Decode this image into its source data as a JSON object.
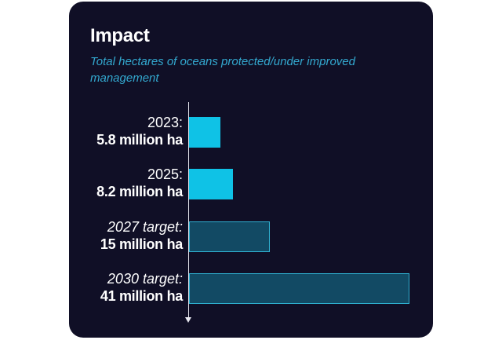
{
  "chart_data": {
    "type": "bar",
    "orientation": "horizontal",
    "title": "Impact",
    "subtitle": "Total hectares of oceans protected/under improved management",
    "categories": [
      "2023:",
      "2025:",
      "2027 target:",
      "2030 target:"
    ],
    "value_labels": [
      "5.8 million ha",
      "8.2 million ha",
      "15 million ha",
      "41 million ha"
    ],
    "values": [
      5.8,
      8.2,
      15,
      41
    ],
    "unit": "million ha",
    "is_target": [
      false,
      false,
      true,
      true
    ],
    "xlim": [
      0,
      41
    ],
    "grid": false,
    "colors": {
      "actual": "#0fc2e6",
      "target_fill": "#124a64",
      "target_border": "#2fb0d0",
      "background": "#100f26",
      "subtitle": "#33a9d0"
    }
  }
}
